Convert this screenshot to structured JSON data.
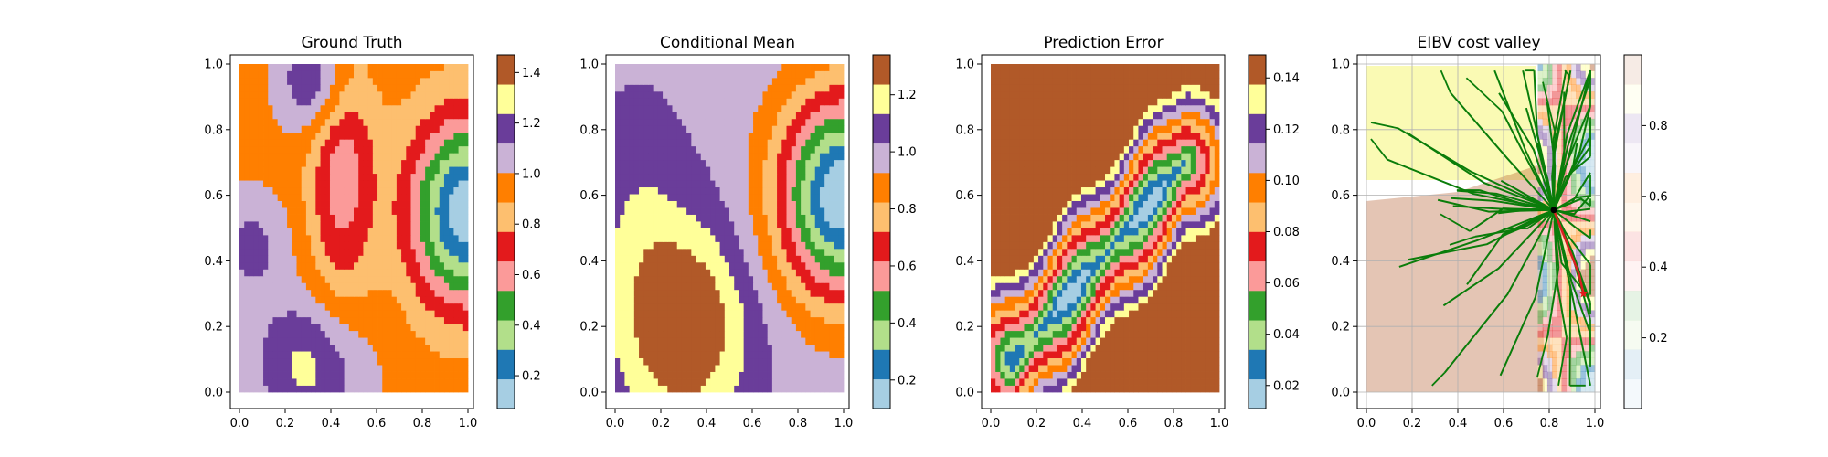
{
  "chart_data": [
    {
      "type": "heatmap",
      "title": "Ground Truth",
      "xlabel": "",
      "ylabel": "",
      "xlim": [
        0,
        1
      ],
      "ylim": [
        0,
        1
      ],
      "x_ticks": [
        "0.0",
        "0.2",
        "0.4",
        "0.6",
        "0.8",
        "1.0"
      ],
      "y_ticks": [
        "0.0",
        "0.2",
        "0.4",
        "0.6",
        "0.8",
        "1.0"
      ],
      "colorbar": {
        "range": [
          0.07,
          1.47
        ],
        "colors": [
          "#a6cee3",
          "#1f78b4",
          "#b2df8a",
          "#33a02c",
          "#fb9a99",
          "#e31a1c",
          "#fdbf6f",
          "#ff7f00",
          "#cab2d6",
          "#6a3d9a",
          "#ffff99",
          "#b15928"
        ],
        "ticks": [
          0.2,
          0.4,
          0.6,
          0.8,
          1.0,
          1.2,
          1.4
        ],
        "tick_labels": [
          "0.2",
          "0.4",
          "0.6",
          "0.8",
          "1.0",
          "1.2",
          "1.4"
        ]
      }
    },
    {
      "type": "heatmap",
      "title": "Conditional Mean",
      "xlabel": "",
      "ylabel": "",
      "xlim": [
        0,
        1
      ],
      "ylim": [
        0,
        1
      ],
      "x_ticks": [
        "0.0",
        "0.2",
        "0.4",
        "0.6",
        "0.8",
        "1.0"
      ],
      "y_ticks": [
        "0.0",
        "0.2",
        "0.4",
        "0.6",
        "0.8",
        "1.0"
      ],
      "colorbar": {
        "range": [
          0.1,
          1.34
        ],
        "colors": [
          "#a6cee3",
          "#1f78b4",
          "#b2df8a",
          "#33a02c",
          "#fb9a99",
          "#e31a1c",
          "#fdbf6f",
          "#ff7f00",
          "#cab2d6",
          "#6a3d9a",
          "#ffff99",
          "#b15928"
        ],
        "ticks": [
          0.2,
          0.4,
          0.6,
          0.8,
          1.0,
          1.2
        ],
        "tick_labels": [
          "0.2",
          "0.4",
          "0.6",
          "0.8",
          "1.0",
          "1.2"
        ]
      }
    },
    {
      "type": "heatmap",
      "title": "Prediction Error",
      "xlabel": "",
      "ylabel": "",
      "xlim": [
        0,
        1
      ],
      "ylim": [
        0,
        1
      ],
      "x_ticks": [
        "0.0",
        "0.2",
        "0.4",
        "0.6",
        "0.8",
        "1.0"
      ],
      "y_ticks": [
        "0.0",
        "0.2",
        "0.4",
        "0.6",
        "0.8",
        "1.0"
      ],
      "colorbar": {
        "range": [
          0.011,
          0.149
        ],
        "colors": [
          "#a6cee3",
          "#1f78b4",
          "#b2df8a",
          "#33a02c",
          "#fb9a99",
          "#e31a1c",
          "#fdbf6f",
          "#ff7f00",
          "#cab2d6",
          "#6a3d9a",
          "#ffff99",
          "#b15928"
        ],
        "ticks": [
          0.02,
          0.04,
          0.06,
          0.08,
          0.1,
          0.12,
          0.14
        ],
        "tick_labels": [
          "0.02",
          "0.04",
          "0.06",
          "0.08",
          "0.10",
          "0.12",
          "0.14"
        ]
      }
    },
    {
      "type": "heatmap",
      "title": "EIBV cost valley",
      "xlabel": "",
      "ylabel": "",
      "xlim": [
        0,
        1
      ],
      "ylim": [
        0,
        1
      ],
      "grid": true,
      "x_ticks": [
        "0.0",
        "0.2",
        "0.4",
        "0.6",
        "0.8",
        "1.0"
      ],
      "y_ticks": [
        "0.0",
        "0.2",
        "0.4",
        "0.6",
        "0.8",
        "1.0"
      ],
      "current_location": {
        "x": 0.82,
        "y": 0.555
      },
      "planned_path": [
        [
          0.82,
          0.555
        ],
        [
          0.93,
          0.36
        ],
        [
          0.95,
          0.3
        ]
      ],
      "target": {
        "x": 0.95,
        "y": 0.3
      },
      "colorbar": {
        "range": [
          0.0,
          1.0
        ],
        "colors": [
          "#a6cee3",
          "#1f78b4",
          "#b2df8a",
          "#33a02c",
          "#fb9a99",
          "#e31a1c",
          "#fdbf6f",
          "#ff7f00",
          "#cab2d6",
          "#6a3d9a",
          "#ffff99",
          "#b15928"
        ],
        "alpha": 0.12,
        "ticks": [
          0.2,
          0.4,
          0.6,
          0.8
        ],
        "tick_labels": [
          "0.2",
          "0.4",
          "0.6",
          "0.8"
        ]
      }
    }
  ],
  "colors": {
    "tree": "#0a7d0a",
    "path": "#d62020",
    "marker": "#000000",
    "target": "#e31a1c"
  }
}
